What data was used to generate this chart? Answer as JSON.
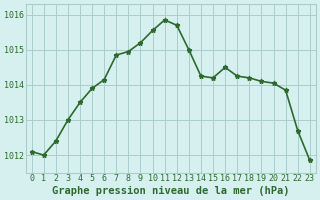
{
  "x": [
    0,
    1,
    2,
    3,
    4,
    5,
    6,
    7,
    8,
    9,
    10,
    11,
    12,
    13,
    14,
    15,
    16,
    17,
    18,
    19,
    20,
    21,
    22,
    23
  ],
  "y": [
    1012.1,
    1012.0,
    1012.4,
    1013.0,
    1013.5,
    1013.9,
    1014.15,
    1014.85,
    1014.95,
    1015.2,
    1015.55,
    1015.85,
    1015.7,
    1015.0,
    1014.25,
    1014.2,
    1014.5,
    1014.25,
    1014.2,
    1014.1,
    1014.05,
    1013.85,
    1012.7,
    1011.85
  ],
  "line_color": "#2d6a2d",
  "marker": "*",
  "marker_size": 3.5,
  "bg_color": "#d6f0f0",
  "grid_color": "#aacccc",
  "xlabel": "Graphe pression niveau de la mer (hPa)",
  "xlabel_color": "#2d6a2d",
  "xlabel_fontsize": 7.5,
  "tick_color": "#2d6a2d",
  "ylim": [
    1011.5,
    1016.3
  ],
  "yticks": [
    1012,
    1013,
    1014,
    1015,
    1016
  ],
  "xticks": [
    0,
    1,
    2,
    3,
    4,
    5,
    6,
    7,
    8,
    9,
    10,
    11,
    12,
    13,
    14,
    15,
    16,
    17,
    18,
    19,
    20,
    21,
    22,
    23
  ],
  "tick_fontsize": 6,
  "line_width": 1.2
}
